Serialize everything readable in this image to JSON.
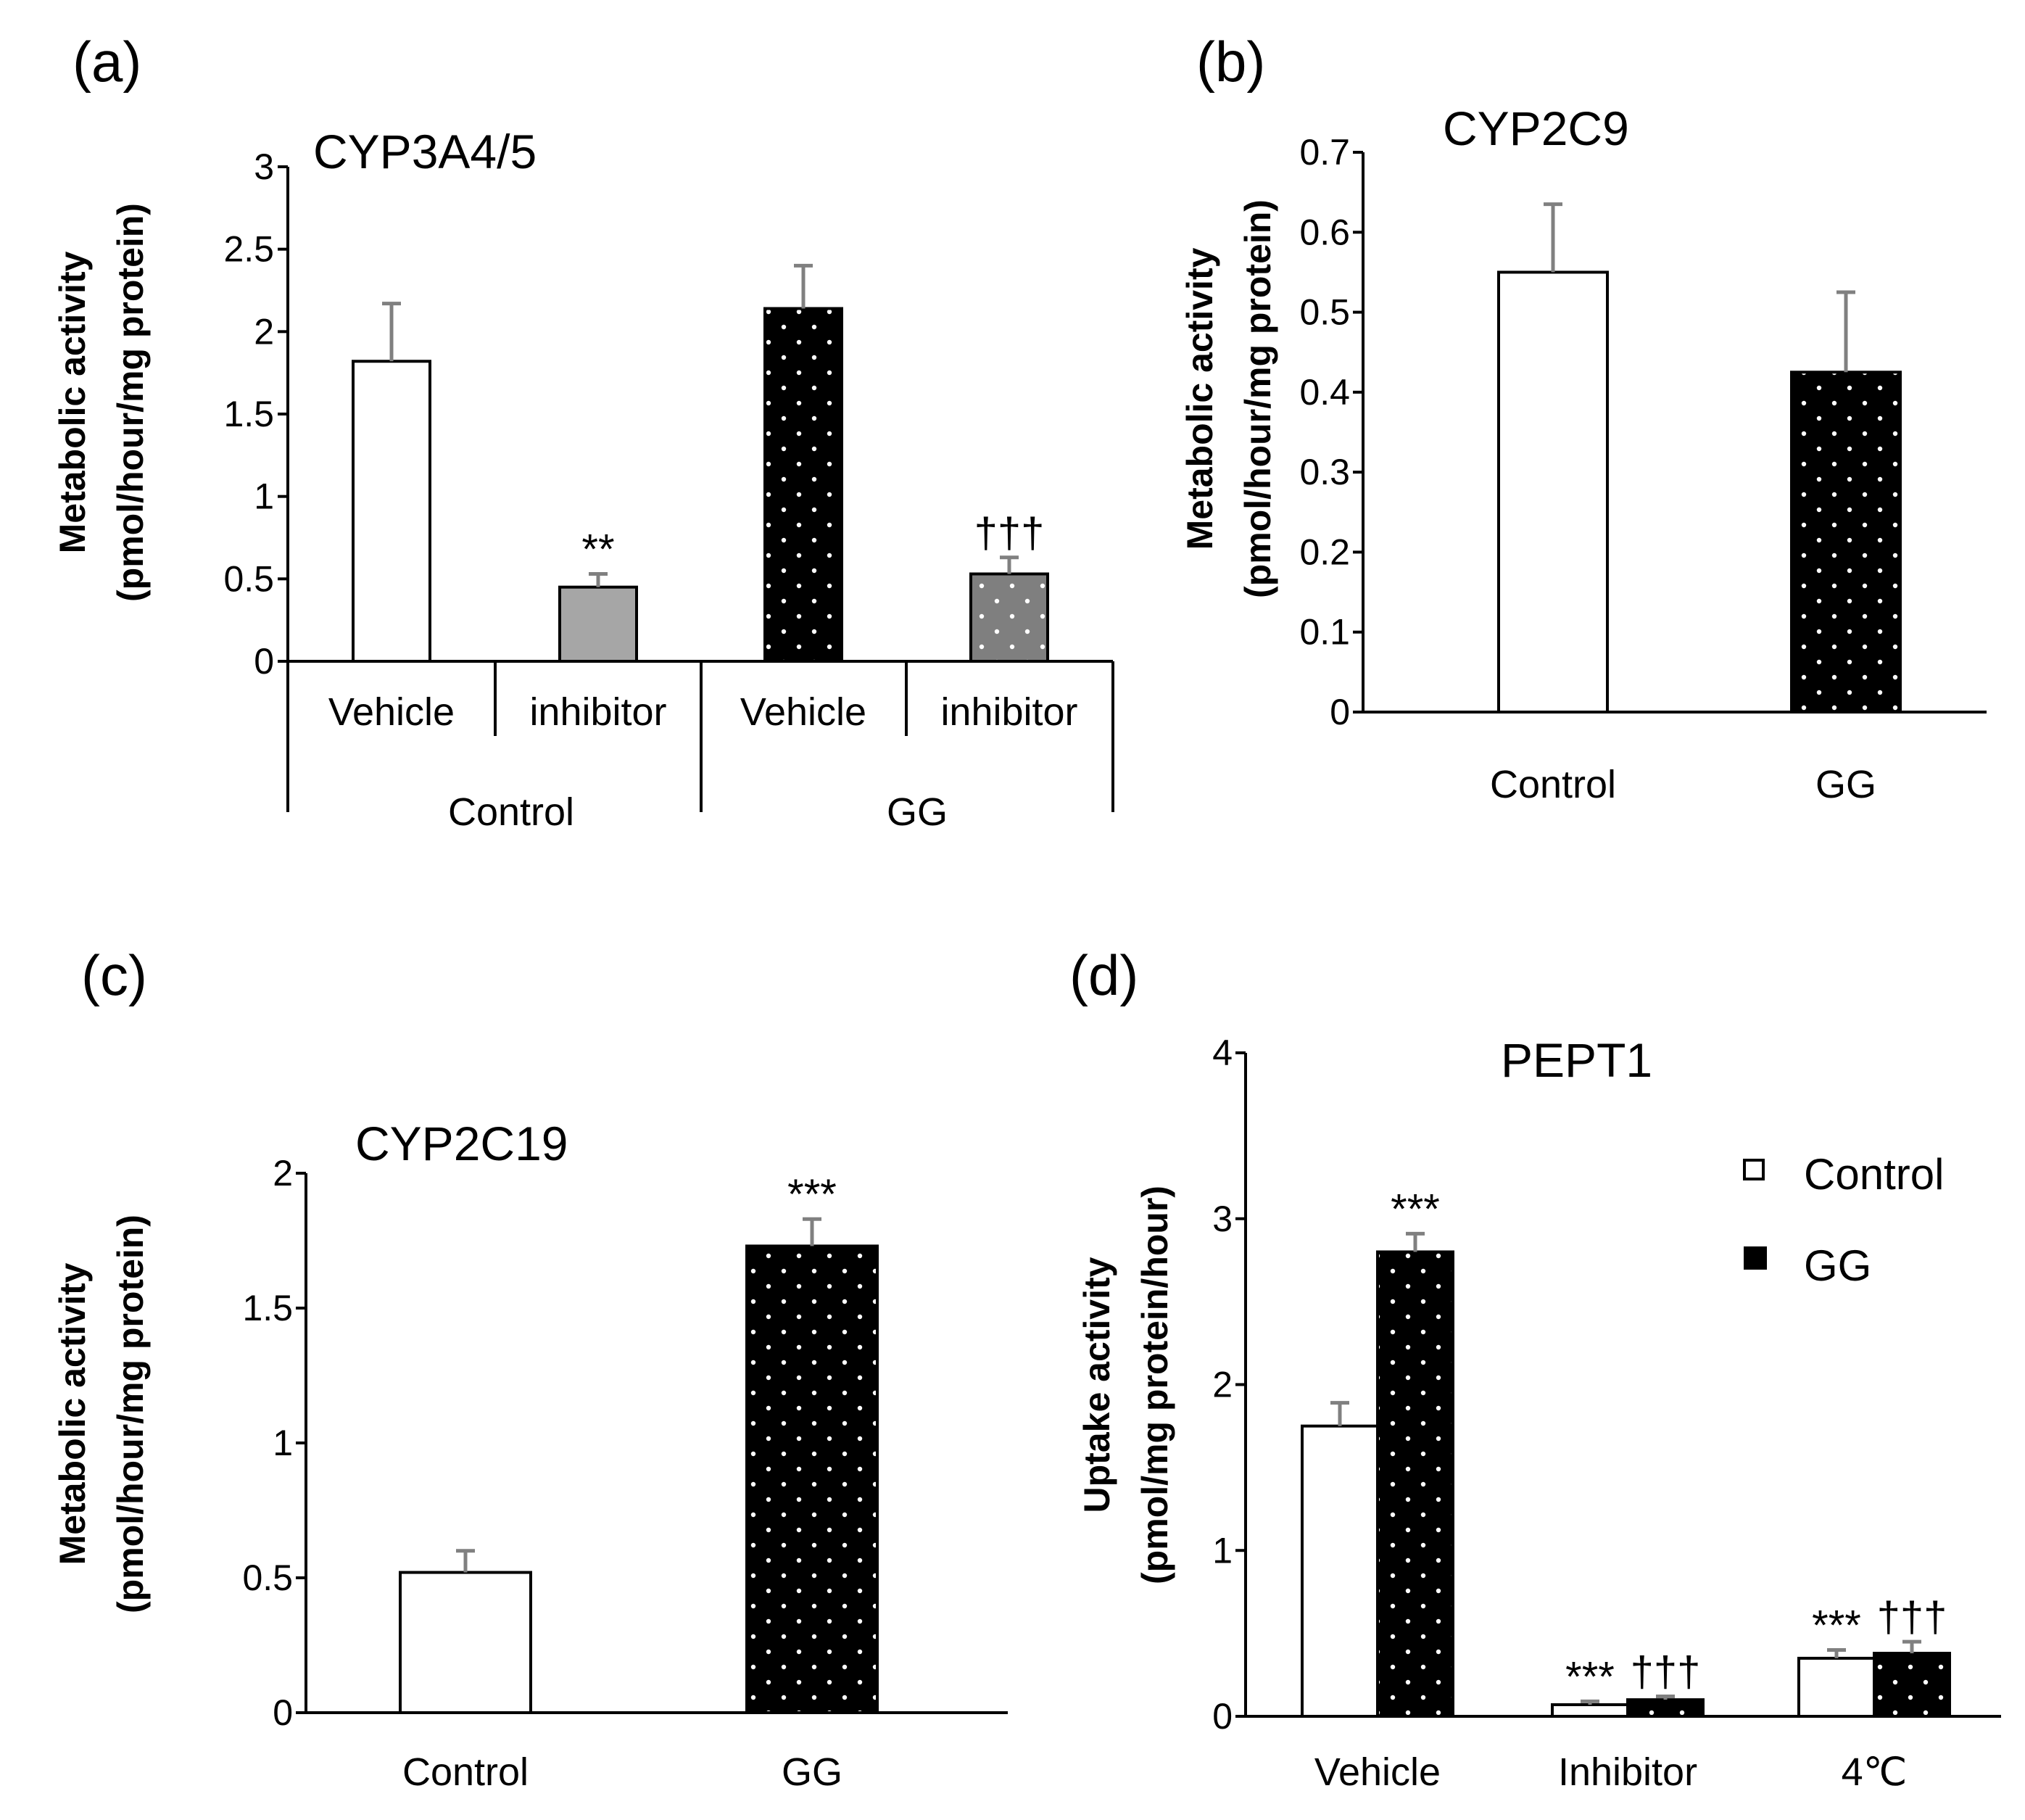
{
  "colors": {
    "white": "#ffffff",
    "black": "#000000",
    "gray": "#a6a6a6",
    "darkgray": "#7f7f7f",
    "error": "#808080"
  },
  "chart_data": [
    {
      "panel": "(a)",
      "type": "bar",
      "title": "CYP3A4/5",
      "ylabel_line1": "Metabolic activity",
      "ylabel_line2": "(pmol/hour/mg protein)",
      "ylim": [
        0,
        3
      ],
      "yticks": [
        "0",
        "0.5",
        "1",
        "1.5",
        "2",
        "2.5",
        "3"
      ],
      "categories": [
        "Vehicle",
        "inhibitor",
        "Vehicle",
        "inhibitor"
      ],
      "groups": [
        "Control",
        "GG"
      ],
      "values": [
        1.82,
        0.45,
        2.14,
        0.53
      ],
      "errors": [
        0.35,
        0.08,
        0.26,
        0.1
      ],
      "fills": [
        "white",
        "gray",
        "black-dots",
        "darkgray-dots"
      ],
      "annotations": [
        "",
        "**",
        "",
        "†††"
      ]
    },
    {
      "panel": "(b)",
      "type": "bar",
      "title": "CYP2C9",
      "ylabel_line1": "Metabolic activity",
      "ylabel_line2": "(pmol/hour/mg protein)",
      "ylim": [
        0,
        0.7
      ],
      "yticks": [
        "0",
        "0.1",
        "0.2",
        "0.3",
        "0.4",
        "0.5",
        "0.6",
        "0.7"
      ],
      "categories": [
        "Control",
        "GG"
      ],
      "values": [
        0.55,
        0.425
      ],
      "errors": [
        0.085,
        0.1
      ],
      "fills": [
        "white",
        "black-dots"
      ],
      "annotations": [
        "",
        ""
      ]
    },
    {
      "panel": "(c)",
      "type": "bar",
      "title": "CYP2C19",
      "ylabel_line1": "Metabolic activity",
      "ylabel_line2": "(pmol/hour/mg protein)",
      "ylim": [
        0,
        2
      ],
      "yticks": [
        "0",
        "0.5",
        "1",
        "1.5",
        "2"
      ],
      "categories": [
        "Control",
        "GG"
      ],
      "values": [
        0.52,
        1.73
      ],
      "errors": [
        0.08,
        0.1
      ],
      "fills": [
        "white",
        "black-dots"
      ],
      "annotations": [
        "",
        "***"
      ]
    },
    {
      "panel": "(d)",
      "type": "bar",
      "title": "PEPT1",
      "ylabel_line1": "Uptake activity",
      "ylabel_line2": "(pmol/mg protein/hour)",
      "ylim": [
        0,
        4
      ],
      "yticks": [
        "0",
        "1",
        "2",
        "3",
        "4"
      ],
      "categories": [
        "Vehicle",
        "Inhibitor",
        "4℃"
      ],
      "series": [
        {
          "name": "Control",
          "fill": "white",
          "values": [
            1.75,
            0.07,
            0.35
          ],
          "errors": [
            0.14,
            0.02,
            0.05
          ],
          "annotations": [
            "",
            "***",
            "***"
          ]
        },
        {
          "name": "GG",
          "fill": "black-dots",
          "values": [
            2.8,
            0.1,
            0.38
          ],
          "errors": [
            0.11,
            0.02,
            0.07
          ],
          "annotations": [
            "***",
            "†††",
            "†††"
          ]
        }
      ],
      "legend_position": "top-right"
    }
  ]
}
